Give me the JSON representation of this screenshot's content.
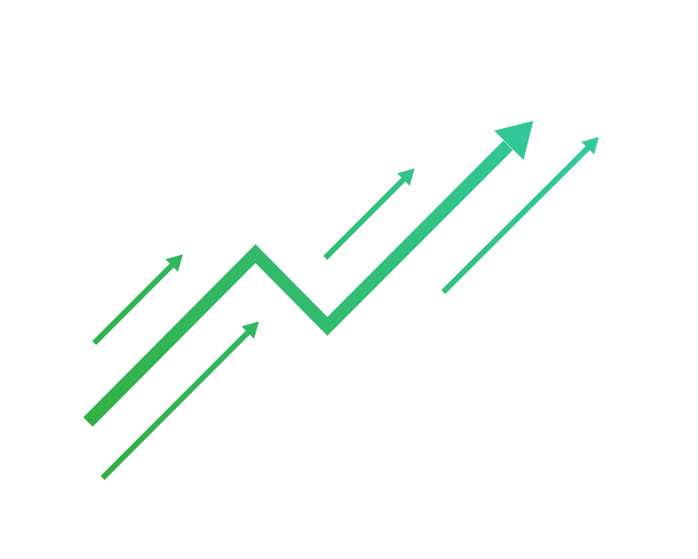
{
  "illustration": {
    "icon_name": "growth-arrows-icon",
    "colors": {
      "start": "#33ae3f",
      "end": "#31cba3",
      "background": "#ffffff"
    }
  }
}
